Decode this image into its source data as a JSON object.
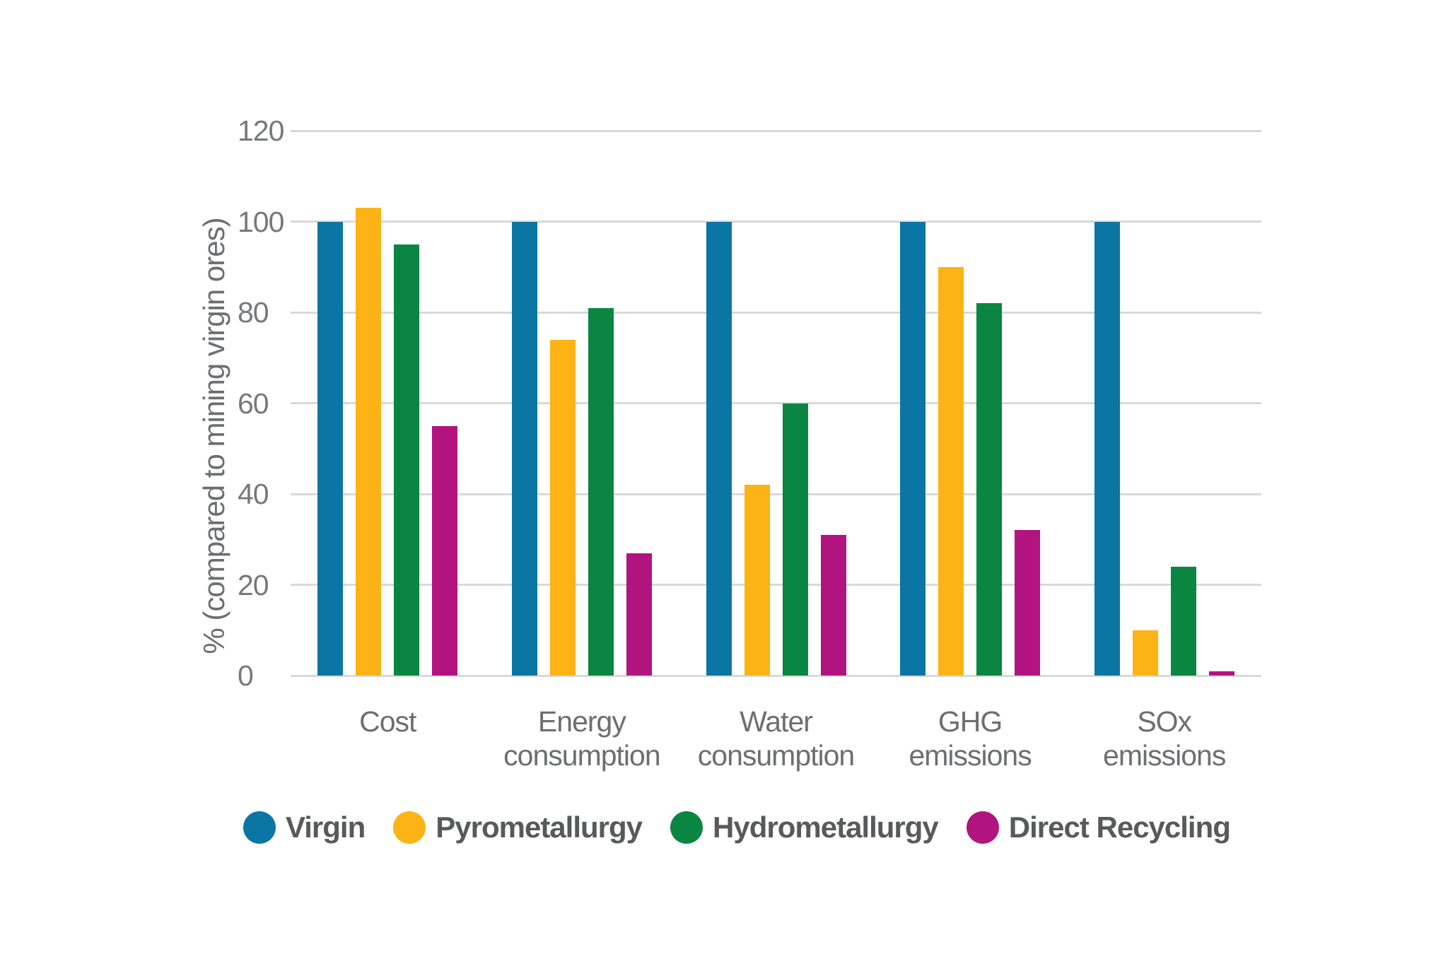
{
  "chart_data": {
    "type": "bar",
    "title": "",
    "xlabel": "",
    "ylabel": "% (compared to mining virgin ores)",
    "ylim": [
      0,
      120
    ],
    "yticks": [
      0,
      20,
      40,
      60,
      80,
      100,
      120
    ],
    "grid": true,
    "legend_position": "bottom",
    "categories": [
      "Cost",
      "Energy consumption",
      "Water consumption",
      "GHG emissions",
      "SOx emissions"
    ],
    "series": [
      {
        "name": "Virgin",
        "color": "#0b76a3",
        "values": [
          100,
          100,
          100,
          100,
          100
        ]
      },
      {
        "name": "Pyrometallurgy",
        "color": "#fbb316",
        "values": [
          103,
          74,
          42,
          90,
          10
        ]
      },
      {
        "name": "Hydrometallurgy",
        "color": "#0a8542",
        "values": [
          95,
          81,
          60,
          82,
          24
        ]
      },
      {
        "name": "Direct Recycling",
        "color": "#b1137f",
        "values": [
          55,
          27,
          31,
          32,
          1
        ]
      }
    ]
  },
  "colors": {
    "background": "#ffffff",
    "gridline": "#d9d9d9",
    "tick_label": "#77787b",
    "category_label": "#6d6e71",
    "axis_title": "#6d6e71",
    "legend_text": "#58595a"
  }
}
